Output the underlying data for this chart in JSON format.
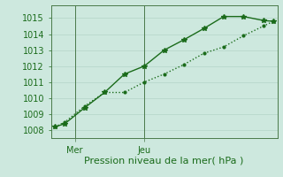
{
  "line1_x": [
    0,
    0.5,
    1.5,
    2.5,
    3.5,
    4.5,
    5.5,
    6.5,
    7.5,
    8.5,
    9.5,
    10.5,
    11
  ],
  "line1_y": [
    1008.2,
    1008.4,
    1009.4,
    1010.35,
    1011.5,
    1012.0,
    1013.0,
    1013.65,
    1014.35,
    1015.1,
    1015.1,
    1014.85,
    1014.8
  ],
  "line2_x": [
    0,
    0.5,
    1.5,
    2.5,
    3.5,
    4.5,
    5.5,
    6.5,
    7.5,
    8.5,
    9.5,
    10.5,
    11
  ],
  "line2_y": [
    1008.2,
    1008.5,
    1009.5,
    1010.35,
    1010.35,
    1011.0,
    1011.5,
    1012.1,
    1012.8,
    1013.2,
    1013.9,
    1014.5,
    1014.8
  ],
  "ylim": [
    1007.5,
    1015.8
  ],
  "yticks": [
    1008,
    1009,
    1010,
    1011,
    1012,
    1013,
    1014,
    1015
  ],
  "xlim": [
    -0.2,
    11.2
  ],
  "vline_positions": [
    1,
    4.5
  ],
  "xtick_positions": [
    1,
    4.5
  ],
  "xtick_labels": [
    "Mer",
    "Jeu"
  ],
  "xlabel": "Pression niveau de la mer( hPa )",
  "line_color": "#1a6b1a",
  "background_color": "#cde8de",
  "grid_color": "#b8d8cc",
  "vline_color": "#4a7a4a",
  "linewidth": 1.0,
  "markersize": 4,
  "ylabel_fontsize": 7,
  "xlabel_fontsize": 8
}
